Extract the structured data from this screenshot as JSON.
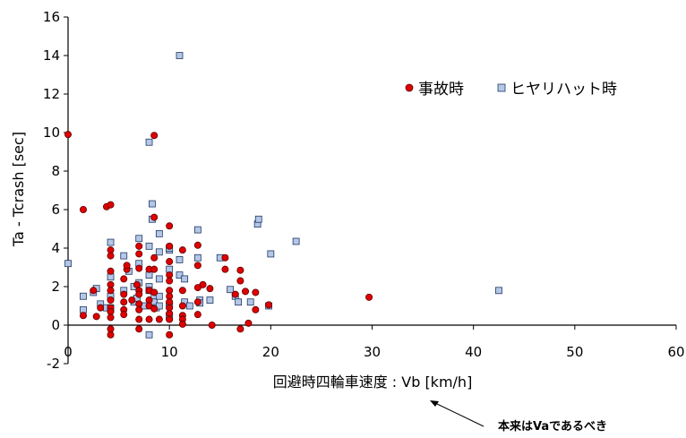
{
  "chart_data": {
    "type": "scatter",
    "title": "",
    "xlabel": "回避時四輪車速度 : Vb [km/h]",
    "ylabel": "Ta - Tcrash [sec]",
    "xlim": [
      0,
      60
    ],
    "ylim": [
      -2,
      16
    ],
    "xticks": [
      "0",
      "10",
      "20",
      "30",
      "40",
      "50",
      "60"
    ],
    "yticks": [
      "-2",
      "0",
      "2",
      "4",
      "6",
      "8",
      "10",
      "12",
      "14",
      "16"
    ],
    "grid": false,
    "legend_position": "upper-right",
    "annotation": "本来はVaであるべき",
    "series": [
      {
        "name": "事故時",
        "marker": "circle",
        "color": "#e00000",
        "points": [
          [
            0,
            9.9
          ],
          [
            1.5,
            6.0
          ],
          [
            1.5,
            0.5
          ],
          [
            2.5,
            1.8
          ],
          [
            2.8,
            0.45
          ],
          [
            3.2,
            0.9
          ],
          [
            3.8,
            6.15
          ],
          [
            4.2,
            6.25
          ],
          [
            4.2,
            3.9
          ],
          [
            4.2,
            3.6
          ],
          [
            4.2,
            2.8
          ],
          [
            4.2,
            2.1
          ],
          [
            4.2,
            1.8
          ],
          [
            4.2,
            1.3
          ],
          [
            4.2,
            0.9
          ],
          [
            4.2,
            0.7
          ],
          [
            4.2,
            0.4
          ],
          [
            4.2,
            -0.2
          ],
          [
            4.2,
            -0.5
          ],
          [
            5.5,
            2.4
          ],
          [
            5.5,
            1.6
          ],
          [
            5.5,
            1.2
          ],
          [
            5.5,
            0.8
          ],
          [
            5.5,
            0.55
          ],
          [
            5.8,
            2.9
          ],
          [
            5.8,
            3.1
          ],
          [
            6.3,
            1.3
          ],
          [
            6.8,
            2.1
          ],
          [
            7.0,
            4.1
          ],
          [
            7.0,
            3.7
          ],
          [
            7.0,
            2.95
          ],
          [
            7.0,
            1.8
          ],
          [
            7.0,
            1.6
          ],
          [
            7.0,
            1.1
          ],
          [
            7.0,
            0.8
          ],
          [
            7.0,
            0.3
          ],
          [
            7.0,
            -0.2
          ],
          [
            8.0,
            2.9
          ],
          [
            8.0,
            1.8
          ],
          [
            8.0,
            1.3
          ],
          [
            8.0,
            1.0
          ],
          [
            8.0,
            0.3
          ],
          [
            8.5,
            9.85
          ],
          [
            8.5,
            5.6
          ],
          [
            8.5,
            3.5
          ],
          [
            8.5,
            2.9
          ],
          [
            8.5,
            1.7
          ],
          [
            8.5,
            0.85
          ],
          [
            9.0,
            0.3
          ],
          [
            10.0,
            5.15
          ],
          [
            10.0,
            4.1
          ],
          [
            10.0,
            3.3
          ],
          [
            10.0,
            2.6
          ],
          [
            10.0,
            2.3
          ],
          [
            10.0,
            1.8
          ],
          [
            10.0,
            1.5
          ],
          [
            10.0,
            1.2
          ],
          [
            10.0,
            0.9
          ],
          [
            10.0,
            0.6
          ],
          [
            10.0,
            0.3
          ],
          [
            10.0,
            -0.5
          ],
          [
            11.3,
            3.9
          ],
          [
            11.3,
            1.8
          ],
          [
            11.3,
            1.0
          ],
          [
            11.3,
            0.5
          ],
          [
            11.3,
            0.3
          ],
          [
            11.3,
            0.05
          ],
          [
            12.8,
            4.15
          ],
          [
            12.8,
            3.1
          ],
          [
            12.8,
            1.95
          ],
          [
            12.8,
            1.2
          ],
          [
            12.8,
            0.55
          ],
          [
            13.3,
            2.1
          ],
          [
            14.0,
            1.9
          ],
          [
            14.2,
            0.0
          ],
          [
            15.5,
            3.5
          ],
          [
            15.5,
            2.9
          ],
          [
            16.5,
            1.6
          ],
          [
            17.0,
            2.85
          ],
          [
            17.0,
            2.3
          ],
          [
            17.0,
            -0.2
          ],
          [
            17.5,
            1.75
          ],
          [
            17.8,
            0.1
          ],
          [
            18.5,
            1.7
          ],
          [
            18.5,
            0.8
          ],
          [
            19.8,
            1.05
          ],
          [
            29.7,
            1.45
          ]
        ]
      },
      {
        "name": "ヒヤリハット時",
        "marker": "square",
        "color": "#b4c7e7",
        "points": [
          [
            0,
            3.2
          ],
          [
            1.5,
            0.8
          ],
          [
            1.5,
            1.5
          ],
          [
            2.5,
            1.7
          ],
          [
            2.8,
            1.9
          ],
          [
            3.2,
            1.1
          ],
          [
            3.8,
            0.9
          ],
          [
            4.2,
            4.3
          ],
          [
            4.2,
            2.5
          ],
          [
            4.2,
            1.5
          ],
          [
            4.2,
            0.9
          ],
          [
            5.5,
            1.8
          ],
          [
            5.5,
            3.6
          ],
          [
            6.0,
            2.8
          ],
          [
            6.5,
            1.2
          ],
          [
            6.5,
            2.0
          ],
          [
            6.8,
            1.4
          ],
          [
            7.0,
            4.5
          ],
          [
            7.0,
            2.2
          ],
          [
            7.0,
            3.2
          ],
          [
            7.5,
            1.0
          ],
          [
            8.0,
            9.5
          ],
          [
            8.0,
            4.1
          ],
          [
            8.0,
            2.6
          ],
          [
            8.0,
            2.0
          ],
          [
            8.0,
            1.8
          ],
          [
            8.0,
            -0.5
          ],
          [
            8.3,
            6.3
          ],
          [
            8.3,
            5.5
          ],
          [
            8.5,
            1.5
          ],
          [
            8.5,
            1.2
          ],
          [
            8.7,
            0.9
          ],
          [
            9.0,
            4.75
          ],
          [
            9.0,
            3.8
          ],
          [
            9.0,
            2.4
          ],
          [
            9.0,
            1.5
          ],
          [
            9.0,
            1.0
          ],
          [
            10.0,
            3.9
          ],
          [
            10.0,
            4.0
          ],
          [
            10.0,
            2.9
          ],
          [
            10.0,
            1.0
          ],
          [
            10.0,
            0.4
          ],
          [
            10.0,
            0.5
          ],
          [
            10.0,
            1.1
          ],
          [
            11.0,
            14.0
          ],
          [
            11.0,
            3.4
          ],
          [
            11.0,
            2.6
          ],
          [
            11.5,
            2.4
          ],
          [
            11.5,
            1.2
          ],
          [
            12.0,
            1.0
          ],
          [
            12.8,
            4.95
          ],
          [
            12.8,
            3.5
          ],
          [
            13.0,
            1.3
          ],
          [
            13.0,
            1.15
          ],
          [
            14.0,
            1.3
          ],
          [
            15.0,
            3.5
          ],
          [
            16.0,
            1.85
          ],
          [
            16.5,
            1.5
          ],
          [
            16.8,
            1.2
          ],
          [
            18.0,
            1.2
          ],
          [
            18.7,
            5.25
          ],
          [
            18.8,
            5.5
          ],
          [
            19.8,
            1.0
          ],
          [
            20.0,
            3.7
          ],
          [
            22.5,
            4.35
          ],
          [
            42.5,
            1.8
          ]
        ]
      }
    ]
  }
}
